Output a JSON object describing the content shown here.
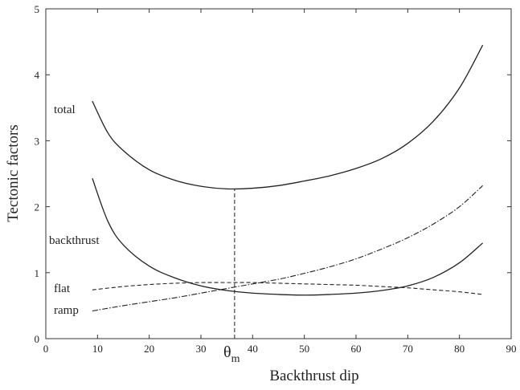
{
  "chart_data": {
    "type": "line",
    "title": "",
    "xlabel": "Backthrust dip",
    "ylabel": "Tectonic factors",
    "xlim": [
      0,
      90
    ],
    "ylim": [
      0,
      5
    ],
    "xticks": [
      0,
      10,
      20,
      30,
      40,
      50,
      60,
      70,
      80,
      90
    ],
    "yticks": [
      0,
      1,
      2,
      3,
      4,
      5
    ],
    "grid": false,
    "legend": "none",
    "series": [
      {
        "name": "total",
        "style": "solid",
        "x": [
          9,
          12,
          15,
          20,
          25,
          30,
          35,
          40,
          45,
          50,
          55,
          60,
          65,
          70,
          75,
          80,
          84.5
        ],
        "y": [
          3.6,
          3.12,
          2.85,
          2.56,
          2.4,
          2.31,
          2.27,
          2.28,
          2.32,
          2.39,
          2.47,
          2.58,
          2.73,
          2.96,
          3.3,
          3.8,
          4.45
        ]
      },
      {
        "name": "backthrust",
        "style": "solid",
        "x": [
          9,
          12,
          15,
          20,
          25,
          30,
          35,
          40,
          45,
          50,
          55,
          60,
          65,
          70,
          75,
          80,
          84.5
        ],
        "y": [
          2.43,
          1.78,
          1.42,
          1.1,
          0.92,
          0.8,
          0.73,
          0.69,
          0.67,
          0.66,
          0.67,
          0.69,
          0.73,
          0.8,
          0.93,
          1.15,
          1.45
        ]
      },
      {
        "name": "flat",
        "style": "dashed",
        "x": [
          9,
          15,
          20,
          25,
          30,
          35,
          40,
          45,
          50,
          55,
          60,
          65,
          70,
          75,
          80,
          84.5
        ],
        "y": [
          0.74,
          0.79,
          0.82,
          0.84,
          0.85,
          0.85,
          0.85,
          0.84,
          0.83,
          0.82,
          0.81,
          0.79,
          0.77,
          0.74,
          0.71,
          0.67
        ]
      },
      {
        "name": "ramp",
        "style": "dashdot",
        "x": [
          9,
          15,
          20,
          25,
          30,
          35,
          40,
          45,
          50,
          55,
          60,
          65,
          70,
          75,
          80,
          84.5
        ],
        "y": [
          0.42,
          0.5,
          0.56,
          0.62,
          0.69,
          0.76,
          0.83,
          0.9,
          0.99,
          1.09,
          1.21,
          1.36,
          1.53,
          1.74,
          2.0,
          2.32
        ]
      }
    ],
    "annotations": {
      "optimum_x": 36.5,
      "optimum_y": 2.27,
      "theta_symbol": "θ",
      "theta_subscript": "m"
    }
  }
}
